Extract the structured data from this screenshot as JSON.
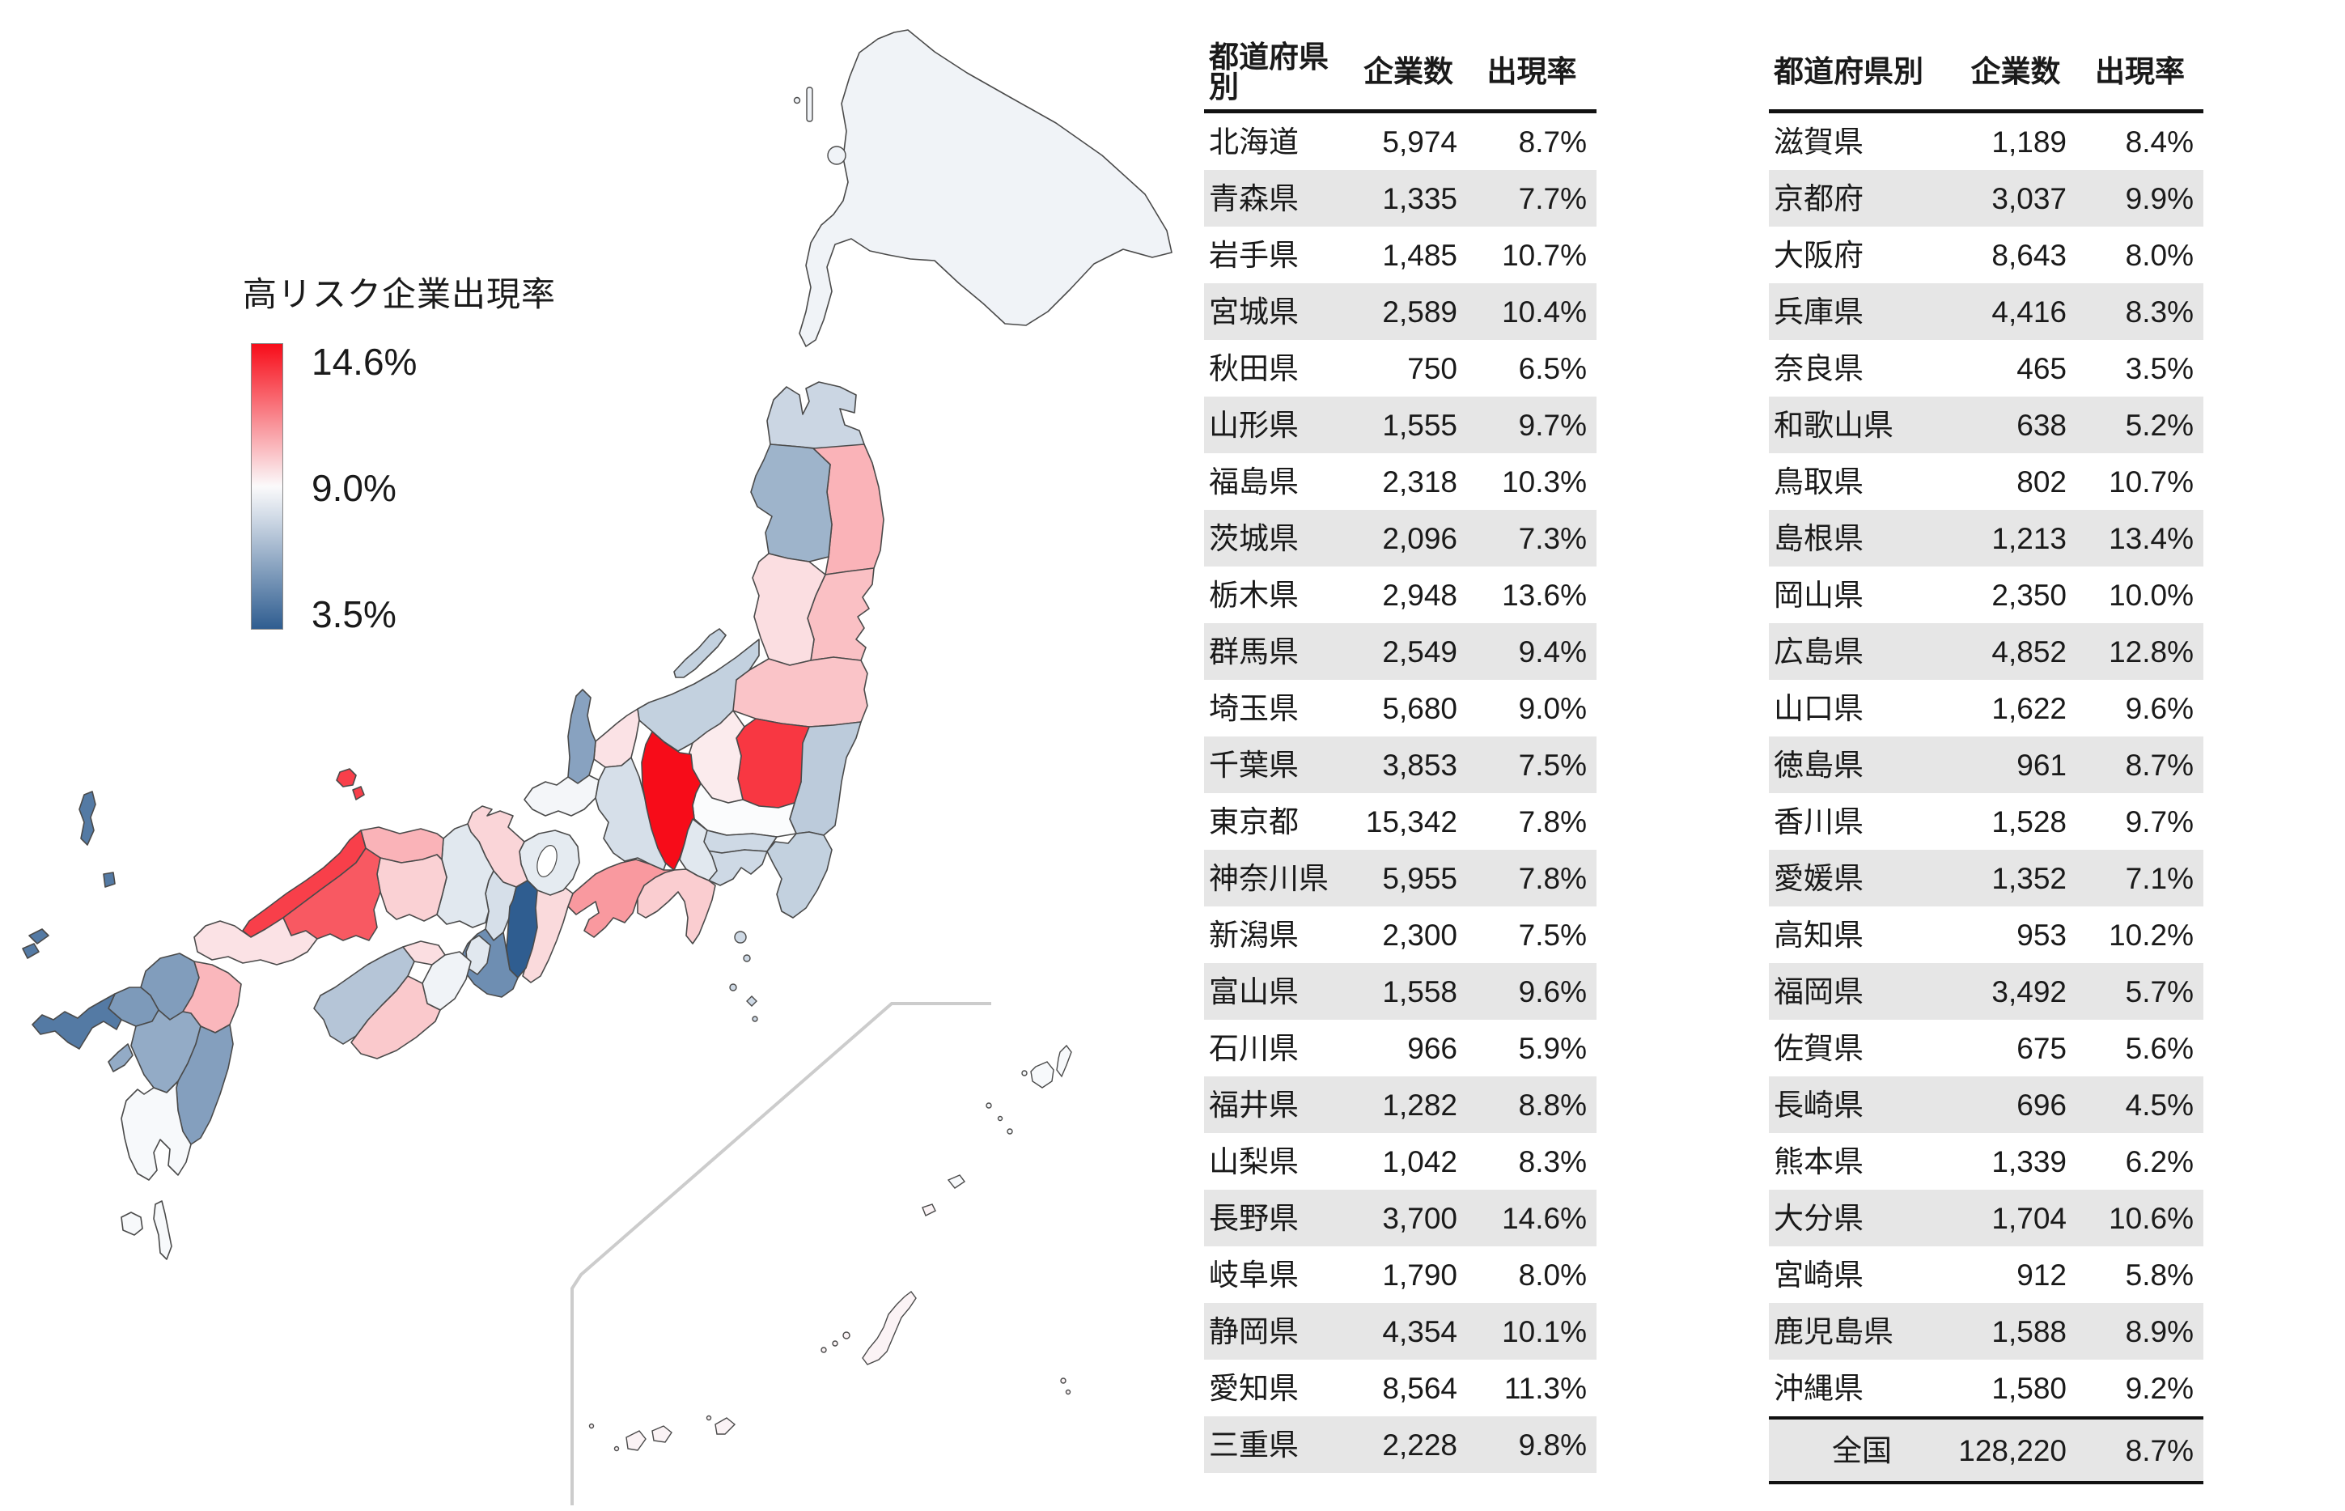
{
  "legend": {
    "title": "高リスク企業出現率",
    "max_label": "14.6%",
    "mid_label": "9.0%",
    "min_label": "3.5%",
    "max_value": 14.6,
    "mid_value": 9.0,
    "min_value": 3.5,
    "color_max": "#f70c19",
    "color_mid": "#fbfcfd",
    "color_min": "#2f5d90"
  },
  "tables": [
    {
      "headers": [
        "都道府県別",
        "企業数",
        "出現率"
      ],
      "rows": [
        [
          "北海道",
          "5,974",
          "8.7%"
        ],
        [
          "青森県",
          "1,335",
          "7.7%"
        ],
        [
          "岩手県",
          "1,485",
          "10.7%"
        ],
        [
          "宮城県",
          "2,589",
          "10.4%"
        ],
        [
          "秋田県",
          "750",
          "6.5%"
        ],
        [
          "山形県",
          "1,555",
          "9.7%"
        ],
        [
          "福島県",
          "2,318",
          "10.3%"
        ],
        [
          "茨城県",
          "2,096",
          "7.3%"
        ],
        [
          "栃木県",
          "2,948",
          "13.6%"
        ],
        [
          "群馬県",
          "2,549",
          "9.4%"
        ],
        [
          "埼玉県",
          "5,680",
          "9.0%"
        ],
        [
          "千葉県",
          "3,853",
          "7.5%"
        ],
        [
          "東京都",
          "15,342",
          "7.8%"
        ],
        [
          "神奈川県",
          "5,955",
          "7.8%"
        ],
        [
          "新潟県",
          "2,300",
          "7.5%"
        ],
        [
          "富山県",
          "1,558",
          "9.6%"
        ],
        [
          "石川県",
          "966",
          "5.9%"
        ],
        [
          "福井県",
          "1,282",
          "8.8%"
        ],
        [
          "山梨県",
          "1,042",
          "8.3%"
        ],
        [
          "長野県",
          "3,700",
          "14.6%"
        ],
        [
          "岐阜県",
          "1,790",
          "8.0%"
        ],
        [
          "静岡県",
          "4,354",
          "10.1%"
        ],
        [
          "愛知県",
          "8,564",
          "11.3%"
        ],
        [
          "三重県",
          "2,228",
          "9.8%"
        ]
      ]
    },
    {
      "headers": [
        "都道府県別",
        "企業数",
        "出現率"
      ],
      "rows": [
        [
          "滋賀県",
          "1,189",
          "8.4%"
        ],
        [
          "京都府",
          "3,037",
          "9.9%"
        ],
        [
          "大阪府",
          "8,643",
          "8.0%"
        ],
        [
          "兵庫県",
          "4,416",
          "8.3%"
        ],
        [
          "奈良県",
          "465",
          "3.5%"
        ],
        [
          "和歌山県",
          "638",
          "5.2%"
        ],
        [
          "鳥取県",
          "802",
          "10.7%"
        ],
        [
          "島根県",
          "1,213",
          "13.4%"
        ],
        [
          "岡山県",
          "2,350",
          "10.0%"
        ],
        [
          "広島県",
          "4,852",
          "12.8%"
        ],
        [
          "山口県",
          "1,622",
          "9.6%"
        ],
        [
          "徳島県",
          "961",
          "8.7%"
        ],
        [
          "香川県",
          "1,528",
          "9.7%"
        ],
        [
          "愛媛県",
          "1,352",
          "7.1%"
        ],
        [
          "高知県",
          "953",
          "10.2%"
        ],
        [
          "福岡県",
          "3,492",
          "5.7%"
        ],
        [
          "佐賀県",
          "675",
          "5.6%"
        ],
        [
          "長崎県",
          "696",
          "4.5%"
        ],
        [
          "熊本県",
          "1,339",
          "6.2%"
        ],
        [
          "大分県",
          "1,704",
          "10.6%"
        ],
        [
          "宮崎県",
          "912",
          "5.8%"
        ],
        [
          "鹿児島県",
          "1,588",
          "8.9%"
        ],
        [
          "沖縄県",
          "1,580",
          "9.2%"
        ]
      ],
      "footer": [
        "全国",
        "128,220",
        "8.7%"
      ]
    }
  ],
  "chart_data": {
    "type": "choropleth_map",
    "title": "高リスク企業出現率",
    "value_label": "出現率(%)",
    "count_label": "企業数",
    "scale": {
      "min": 3.5,
      "mid": 9.0,
      "max": 14.6,
      "min_color": "#2f5d90",
      "mid_color": "#fbfcfd",
      "max_color": "#f70c19"
    },
    "national_total": {
      "name": "全国",
      "companies": 128220,
      "rate": 8.7
    },
    "regions": [
      {
        "name": "北海道",
        "companies": 5974,
        "rate": 8.7
      },
      {
        "name": "青森県",
        "companies": 1335,
        "rate": 7.7
      },
      {
        "name": "岩手県",
        "companies": 1485,
        "rate": 10.7
      },
      {
        "name": "宮城県",
        "companies": 2589,
        "rate": 10.4
      },
      {
        "name": "秋田県",
        "companies": 750,
        "rate": 6.5
      },
      {
        "name": "山形県",
        "companies": 1555,
        "rate": 9.7
      },
      {
        "name": "福島県",
        "companies": 2318,
        "rate": 10.3
      },
      {
        "name": "茨城県",
        "companies": 2096,
        "rate": 7.3
      },
      {
        "name": "栃木県",
        "companies": 2948,
        "rate": 13.6
      },
      {
        "name": "群馬県",
        "companies": 2549,
        "rate": 9.4
      },
      {
        "name": "埼玉県",
        "companies": 5680,
        "rate": 9.0
      },
      {
        "name": "千葉県",
        "companies": 3853,
        "rate": 7.5
      },
      {
        "name": "東京都",
        "companies": 15342,
        "rate": 7.8
      },
      {
        "name": "神奈川県",
        "companies": 5955,
        "rate": 7.8
      },
      {
        "name": "新潟県",
        "companies": 2300,
        "rate": 7.5
      },
      {
        "name": "富山県",
        "companies": 1558,
        "rate": 9.6
      },
      {
        "name": "石川県",
        "companies": 966,
        "rate": 5.9
      },
      {
        "name": "福井県",
        "companies": 1282,
        "rate": 8.8
      },
      {
        "name": "山梨県",
        "companies": 1042,
        "rate": 8.3
      },
      {
        "name": "長野県",
        "companies": 3700,
        "rate": 14.6
      },
      {
        "name": "岐阜県",
        "companies": 1790,
        "rate": 8.0
      },
      {
        "name": "静岡県",
        "companies": 4354,
        "rate": 10.1
      },
      {
        "name": "愛知県",
        "companies": 8564,
        "rate": 11.3
      },
      {
        "name": "三重県",
        "companies": 2228,
        "rate": 9.8
      },
      {
        "name": "滋賀県",
        "companies": 1189,
        "rate": 8.4
      },
      {
        "name": "京都府",
        "companies": 3037,
        "rate": 9.9
      },
      {
        "name": "大阪府",
        "companies": 8643,
        "rate": 8.0
      },
      {
        "name": "兵庫県",
        "companies": 4416,
        "rate": 8.3
      },
      {
        "name": "奈良県",
        "companies": 465,
        "rate": 3.5
      },
      {
        "name": "和歌山県",
        "companies": 638,
        "rate": 5.2
      },
      {
        "name": "鳥取県",
        "companies": 802,
        "rate": 10.7
      },
      {
        "name": "島根県",
        "companies": 1213,
        "rate": 13.4
      },
      {
        "name": "岡山県",
        "companies": 2350,
        "rate": 10.0
      },
      {
        "name": "広島県",
        "companies": 4852,
        "rate": 12.8
      },
      {
        "name": "山口県",
        "companies": 1622,
        "rate": 9.6
      },
      {
        "name": "徳島県",
        "companies": 961,
        "rate": 8.7
      },
      {
        "name": "香川県",
        "companies": 1528,
        "rate": 9.7
      },
      {
        "name": "愛媛県",
        "companies": 1352,
        "rate": 7.1
      },
      {
        "name": "高知県",
        "companies": 953,
        "rate": 10.2
      },
      {
        "name": "福岡県",
        "companies": 3492,
        "rate": 5.7
      },
      {
        "name": "佐賀県",
        "companies": 675,
        "rate": 5.6
      },
      {
        "name": "長崎県",
        "companies": 696,
        "rate": 4.5
      },
      {
        "name": "熊本県",
        "companies": 1339,
        "rate": 6.2
      },
      {
        "name": "大分県",
        "companies": 1704,
        "rate": 10.6
      },
      {
        "name": "宮崎県",
        "companies": 912,
        "rate": 5.8
      },
      {
        "name": "鹿児島県",
        "companies": 1588,
        "rate": 8.9
      },
      {
        "name": "沖縄県",
        "companies": 1580,
        "rate": 9.2
      }
    ]
  }
}
